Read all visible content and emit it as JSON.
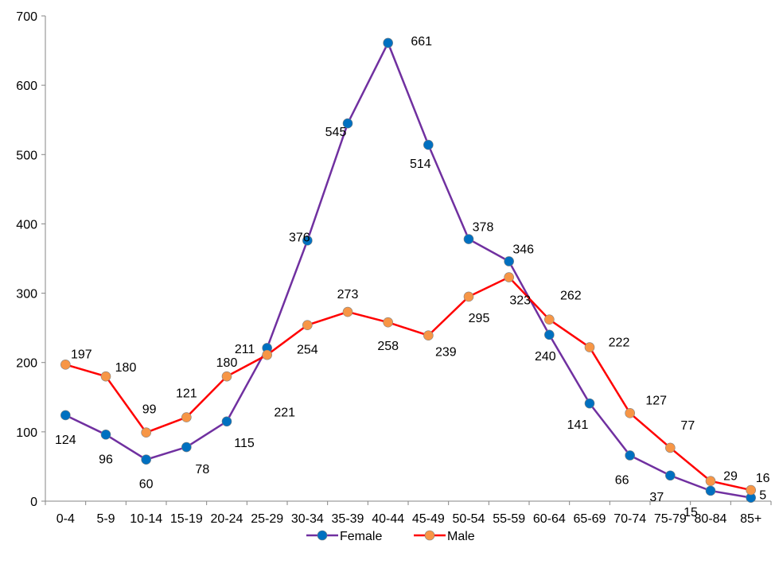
{
  "chart_data": {
    "type": "line",
    "categories": [
      "0-4",
      "5-9",
      "10-14",
      "15-19",
      "20-24",
      "25-29",
      "30-34",
      "35-39",
      "40-44",
      "45-49",
      "50-54",
      "55-59",
      "60-64",
      "65-69",
      "70-74",
      "75-79",
      "80-84",
      "85+"
    ],
    "ylim": [
      0,
      700
    ],
    "yticks": [
      0,
      100,
      200,
      300,
      400,
      500,
      600,
      700
    ],
    "grid": false,
    "legend_position": "bottom",
    "series": [
      {
        "name": "Female",
        "line_color": "#7030A0",
        "marker_color": "#0070C0",
        "values": [
          124,
          96,
          60,
          78,
          115,
          221,
          376,
          545,
          661,
          514,
          378,
          346,
          240,
          141,
          66,
          37,
          15,
          5
        ]
      },
      {
        "name": "Male",
        "line_color": "#FF0000",
        "marker_color": "#F79646",
        "values": [
          197,
          180,
          99,
          121,
          180,
          211,
          254,
          273,
          258,
          239,
          295,
          323,
          262,
          222,
          127,
          77,
          29,
          16
        ]
      }
    ]
  }
}
